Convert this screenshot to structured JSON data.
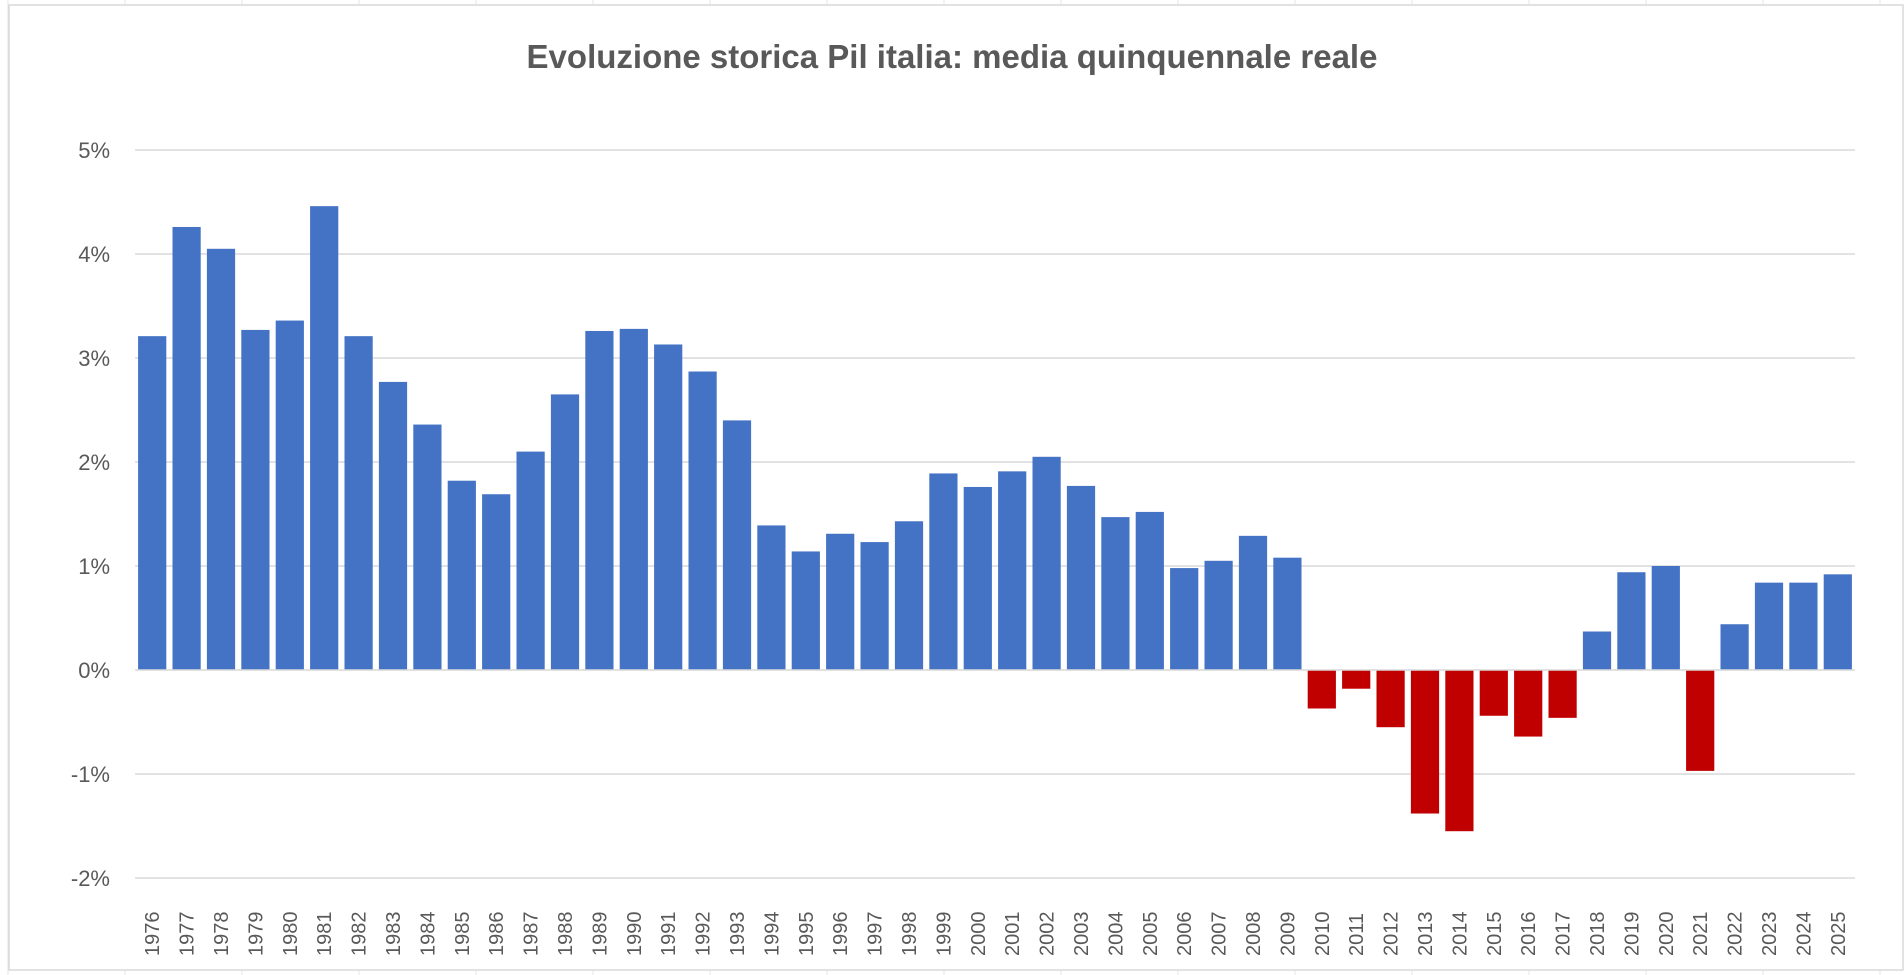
{
  "chart_data": {
    "type": "bar",
    "title": "Evoluzione storica Pil italia: media quinquennale reale",
    "xlabel": "",
    "ylabel": "",
    "ylim": [
      -2,
      5
    ],
    "yticks": [
      5,
      4,
      3,
      2,
      1,
      0,
      -1,
      -2
    ],
    "ytick_labels": [
      "5%",
      "4%",
      "3%",
      "2%",
      "1%",
      "0%",
      "-1%",
      "-2%"
    ],
    "grid": true,
    "legend": "none",
    "colors": {
      "positive": "#4472C4",
      "negative": "#C00000",
      "grid": "#d9d9d9",
      "text": "#595959"
    },
    "categories": [
      "1976",
      "1977",
      "1978",
      "1979",
      "1980",
      "1981",
      "1982",
      "1983",
      "1984",
      "1985",
      "1986",
      "1987",
      "1988",
      "1989",
      "1990",
      "1991",
      "1992",
      "1993",
      "1994",
      "1995",
      "1996",
      "1997",
      "1998",
      "1999",
      "2000",
      "2001",
      "2002",
      "2003",
      "2004",
      "2005",
      "2006",
      "2007",
      "2008",
      "2009",
      "2010",
      "2011",
      "2012",
      "2013",
      "2014",
      "2015",
      "2016",
      "2017",
      "2018",
      "2019",
      "2020",
      "2021",
      "2022",
      "2023",
      "2024",
      "2025"
    ],
    "values": [
      3.21,
      4.26,
      4.05,
      3.27,
      3.36,
      4.46,
      3.21,
      2.77,
      2.36,
      1.82,
      1.69,
      2.1,
      2.65,
      3.26,
      3.28,
      3.13,
      2.87,
      2.4,
      1.39,
      1.14,
      1.31,
      1.23,
      1.43,
      1.89,
      1.76,
      1.91,
      2.05,
      1.77,
      1.47,
      1.52,
      0.98,
      1.05,
      1.29,
      1.08,
      -0.37,
      -0.18,
      -0.55,
      -1.38,
      -1.55,
      -0.44,
      -0.64,
      -0.46,
      0.37,
      0.94,
      1.0,
      -0.97,
      0.44,
      0.84,
      0.84,
      0.92
    ]
  }
}
